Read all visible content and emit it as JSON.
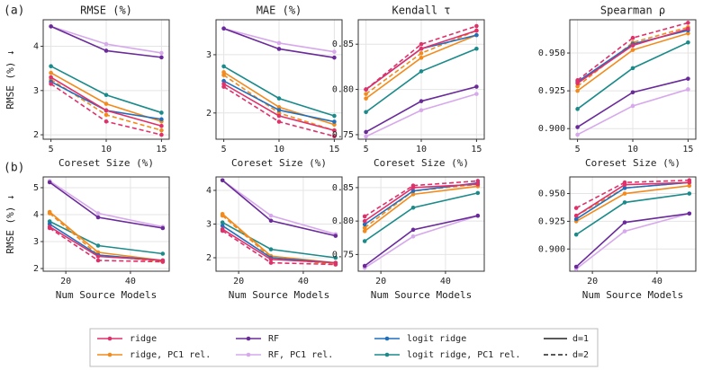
{
  "legend": {
    "entries": [
      {
        "name": "ridge",
        "color": "#e0306a"
      },
      {
        "name": "ridge, PC1 rel.",
        "color": "#f28a1c"
      },
      {
        "name": "RF",
        "color": "#6a2a9a"
      },
      {
        "name": "RF, PC1 rel.",
        "color": "#d7a8ec"
      },
      {
        "name": "logit ridge",
        "color": "#1f6fbf"
      },
      {
        "name": "logit ridge, PC1 rel.",
        "color": "#1a8a8a"
      }
    ],
    "styles": [
      {
        "label": "d=1",
        "dash": false
      },
      {
        "label": "d=2",
        "dash": true
      }
    ]
  },
  "chart_data": [
    {
      "type": "line",
      "panel_label": "(a)",
      "title": "RMSE (%)",
      "xlabel": "Coreset Size (%)",
      "ylabel": "RMSE (%) ↓",
      "x": [
        5,
        10,
        15
      ],
      "xlim": [
        4.3,
        15.7
      ],
      "xticks": [
        5,
        10,
        15
      ],
      "ylim": [
        1.9,
        4.6
      ],
      "yticks": [
        2,
        3,
        4
      ],
      "grid": true,
      "series": [
        {
          "name": "RF, PC1 rel.",
          "color": "#d7a8ec",
          "dash": false,
          "values": [
            4.45,
            4.05,
            3.85
          ]
        },
        {
          "name": "RF",
          "color": "#6a2a9a",
          "dash": false,
          "values": [
            4.45,
            3.9,
            3.75
          ]
        },
        {
          "name": "logit ridge, PC1 rel.",
          "color": "#1a8a8a",
          "dash": false,
          "values": [
            3.55,
            2.9,
            2.5
          ]
        },
        {
          "name": "ridge, PC1 rel.",
          "color": "#f28a1c",
          "dash": false,
          "values": [
            3.4,
            2.7,
            2.3
          ]
        },
        {
          "name": "ridge, PC1 rel.",
          "color": "#f28a1c",
          "dash": true,
          "values": [
            3.25,
            2.45,
            2.1
          ]
        },
        {
          "name": "logit ridge",
          "color": "#1f6fbf",
          "dash": false,
          "values": [
            3.2,
            2.55,
            2.35
          ]
        },
        {
          "name": "ridge",
          "color": "#e0306a",
          "dash": false,
          "values": [
            3.3,
            2.55,
            2.2
          ]
        },
        {
          "name": "ridge",
          "color": "#e0306a",
          "dash": true,
          "values": [
            3.15,
            2.3,
            2.0
          ]
        }
      ]
    },
    {
      "type": "line",
      "title": "MAE (%)",
      "xlabel": "Coreset Size (%)",
      "x": [
        5,
        10,
        15
      ],
      "xlim": [
        4.3,
        15.7
      ],
      "xticks": [
        5,
        10,
        15
      ],
      "ylim": [
        1.55,
        3.6
      ],
      "yticks": [
        2,
        3
      ],
      "grid": true,
      "series": [
        {
          "name": "RF, PC1 rel.",
          "color": "#d7a8ec",
          "dash": false,
          "values": [
            3.45,
            3.2,
            3.05
          ]
        },
        {
          "name": "RF",
          "color": "#6a2a9a",
          "dash": false,
          "values": [
            3.45,
            3.1,
            2.95
          ]
        },
        {
          "name": "logit ridge, PC1 rel.",
          "color": "#1a8a8a",
          "dash": false,
          "values": [
            2.8,
            2.25,
            1.95
          ]
        },
        {
          "name": "ridge, PC1 rel.",
          "color": "#f28a1c",
          "dash": false,
          "values": [
            2.7,
            2.1,
            1.8
          ]
        },
        {
          "name": "ridge, PC1 rel.",
          "color": "#f28a1c",
          "dash": true,
          "values": [
            2.65,
            2.0,
            1.7
          ]
        },
        {
          "name": "logit ridge",
          "color": "#1f6fbf",
          "dash": false,
          "values": [
            2.55,
            2.05,
            1.85
          ]
        },
        {
          "name": "ridge",
          "color": "#e0306a",
          "dash": false,
          "values": [
            2.5,
            1.95,
            1.7
          ]
        },
        {
          "name": "ridge",
          "color": "#e0306a",
          "dash": true,
          "values": [
            2.45,
            1.85,
            1.6
          ]
        }
      ]
    },
    {
      "type": "line",
      "title": "Kendall τ",
      "xlabel": "Coreset Size (%)",
      "x": [
        5,
        10,
        15
      ],
      "xlim": [
        4.3,
        15.7
      ],
      "xticks": [
        5,
        10,
        15
      ],
      "ylim": [
        0.745,
        0.877
      ],
      "yticks": [
        0.75,
        {
          "value": 0.8,
          "label": "0.80"
        },
        0.85
      ],
      "grid": true,
      "series": [
        {
          "name": "RF, PC1 rel.",
          "color": "#d7a8ec",
          "dash": false,
          "values": [
            0.748,
            0.777,
            0.795
          ]
        },
        {
          "name": "RF",
          "color": "#6a2a9a",
          "dash": false,
          "values": [
            0.753,
            0.787,
            0.803
          ]
        },
        {
          "name": "logit ridge, PC1 rel.",
          "color": "#1a8a8a",
          "dash": false,
          "values": [
            0.775,
            0.82,
            0.845
          ]
        },
        {
          "name": "ridge, PC1 rel.",
          "color": "#f28a1c",
          "dash": false,
          "values": [
            0.79,
            0.835,
            0.86
          ]
        },
        {
          "name": "ridge, PC1 rel.",
          "color": "#f28a1c",
          "dash": true,
          "values": [
            0.795,
            0.84,
            0.865
          ]
        },
        {
          "name": "logit ridge",
          "color": "#1f6fbf",
          "dash": false,
          "values": [
            0.8,
            0.845,
            0.86
          ]
        },
        {
          "name": "ridge",
          "color": "#e0306a",
          "dash": false,
          "values": [
            0.8,
            0.845,
            0.865
          ]
        },
        {
          "name": "ridge",
          "color": "#e0306a",
          "dash": true,
          "values": [
            0.8,
            0.85,
            0.87
          ]
        }
      ]
    },
    {
      "type": "line",
      "title": "Spearman ρ",
      "xlabel": "Coreset Size (%)",
      "x": [
        5,
        10,
        15
      ],
      "xlim": [
        4.3,
        15.7
      ],
      "xticks": [
        5,
        10,
        15
      ],
      "ylim": [
        0.893,
        0.972
      ],
      "yticks": [
        {
          "value": 0.9,
          "label": "0.900"
        },
        0.925,
        {
          "value": 0.95,
          "label": "0.950"
        }
      ],
      "grid": true,
      "series": [
        {
          "name": "RF, PC1 rel.",
          "color": "#d7a8ec",
          "dash": false,
          "values": [
            0.896,
            0.915,
            0.926
          ]
        },
        {
          "name": "RF",
          "color": "#6a2a9a",
          "dash": false,
          "values": [
            0.901,
            0.924,
            0.933
          ]
        },
        {
          "name": "logit ridge, PC1 rel.",
          "color": "#1a8a8a",
          "dash": false,
          "values": [
            0.913,
            0.94,
            0.957
          ]
        },
        {
          "name": "ridge, PC1 rel.",
          "color": "#f28a1c",
          "dash": false,
          "values": [
            0.925,
            0.952,
            0.963
          ]
        },
        {
          "name": "ridge, PC1 rel.",
          "color": "#f28a1c",
          "dash": true,
          "values": [
            0.928,
            0.957,
            0.967
          ]
        },
        {
          "name": "logit ridge",
          "color": "#1f6fbf",
          "dash": false,
          "values": [
            0.931,
            0.956,
            0.965
          ]
        },
        {
          "name": "ridge",
          "color": "#e0306a",
          "dash": false,
          "values": [
            0.93,
            0.955,
            0.966
          ]
        },
        {
          "name": "ridge",
          "color": "#e0306a",
          "dash": true,
          "values": [
            0.932,
            0.96,
            0.97
          ]
        }
      ]
    },
    {
      "type": "line",
      "panel_label": "(b)",
      "xlabel": "Num Source Models",
      "ylabel": "RMSE (%) ↓",
      "x": [
        15,
        30,
        50
      ],
      "xlim": [
        13,
        52
      ],
      "xticks": [
        20,
        40
      ],
      "ylim": [
        1.9,
        5.4
      ],
      "yticks": [
        2,
        3,
        4,
        5
      ],
      "grid": true,
      "series": [
        {
          "name": "RF, PC1 rel.",
          "color": "#d7a8ec",
          "dash": false,
          "values": [
            5.25,
            4.05,
            3.55
          ]
        },
        {
          "name": "RF",
          "color": "#6a2a9a",
          "dash": false,
          "values": [
            5.2,
            3.9,
            3.5
          ]
        },
        {
          "name": "logit ridge, PC1 rel.",
          "color": "#1a8a8a",
          "dash": false,
          "values": [
            3.75,
            2.85,
            2.55
          ]
        },
        {
          "name": "ridge, PC1 rel.",
          "color": "#f28a1c",
          "dash": false,
          "values": [
            4.1,
            2.6,
            2.3
          ]
        },
        {
          "name": "ridge, PC1 rel.",
          "color": "#f28a1c",
          "dash": true,
          "values": [
            4.05,
            2.5,
            2.25
          ]
        },
        {
          "name": "logit ridge",
          "color": "#1f6fbf",
          "dash": false,
          "values": [
            3.65,
            2.5,
            2.3
          ]
        },
        {
          "name": "ridge",
          "color": "#e0306a",
          "dash": false,
          "values": [
            3.55,
            2.45,
            2.3
          ]
        },
        {
          "name": "ridge",
          "color": "#e0306a",
          "dash": true,
          "values": [
            3.5,
            2.3,
            2.25
          ]
        }
      ]
    },
    {
      "type": "line",
      "xlabel": "Num Source Models",
      "x": [
        15,
        30,
        50
      ],
      "xlim": [
        13,
        52
      ],
      "xticks": [
        20,
        40
      ],
      "ylim": [
        1.6,
        4.4
      ],
      "yticks": [
        2,
        3,
        4
      ],
      "grid": true,
      "series": [
        {
          "name": "RF, PC1 rel.",
          "color": "#d7a8ec",
          "dash": false,
          "values": [
            4.3,
            3.25,
            2.7
          ]
        },
        {
          "name": "RF",
          "color": "#6a2a9a",
          "dash": false,
          "values": [
            4.3,
            3.1,
            2.65
          ]
        },
        {
          "name": "logit ridge, PC1 rel.",
          "color": "#1a8a8a",
          "dash": false,
          "values": [
            3.05,
            2.25,
            2.0
          ]
        },
        {
          "name": "ridge, PC1 rel.",
          "color": "#f28a1c",
          "dash": false,
          "values": [
            3.3,
            2.05,
            1.85
          ]
        },
        {
          "name": "ridge, PC1 rel.",
          "color": "#f28a1c",
          "dash": true,
          "values": [
            3.25,
            2.0,
            1.8
          ]
        },
        {
          "name": "logit ridge",
          "color": "#1f6fbf",
          "dash": false,
          "values": [
            2.95,
            2.0,
            1.85
          ]
        },
        {
          "name": "ridge",
          "color": "#e0306a",
          "dash": false,
          "values": [
            2.85,
            1.95,
            1.85
          ]
        },
        {
          "name": "ridge",
          "color": "#e0306a",
          "dash": true,
          "values": [
            2.8,
            1.85,
            1.8
          ]
        }
      ]
    },
    {
      "type": "line",
      "xlabel": "Num Source Models",
      "x": [
        15,
        30,
        50
      ],
      "xlim": [
        13,
        52
      ],
      "xticks": [
        20,
        40
      ],
      "ylim": [
        0.725,
        0.866
      ],
      "yticks": [
        0.75,
        {
          "value": 0.8,
          "label": "0.80"
        },
        0.85
      ],
      "grid": true,
      "series": [
        {
          "name": "RF, PC1 rel.",
          "color": "#d7a8ec",
          "dash": false,
          "values": [
            0.73,
            0.777,
            0.808
          ]
        },
        {
          "name": "RF",
          "color": "#6a2a9a",
          "dash": false,
          "values": [
            0.733,
            0.787,
            0.808
          ]
        },
        {
          "name": "logit ridge, PC1 rel.",
          "color": "#1a8a8a",
          "dash": false,
          "values": [
            0.77,
            0.82,
            0.842
          ]
        },
        {
          "name": "ridge, PC1 rel.",
          "color": "#f28a1c",
          "dash": false,
          "values": [
            0.785,
            0.84,
            0.852
          ]
        },
        {
          "name": "ridge, PC1 rel.",
          "color": "#f28a1c",
          "dash": true,
          "values": [
            0.79,
            0.845,
            0.855
          ]
        },
        {
          "name": "logit ridge",
          "color": "#1f6fbf",
          "dash": false,
          "values": [
            0.795,
            0.845,
            0.857
          ]
        },
        {
          "name": "ridge",
          "color": "#e0306a",
          "dash": false,
          "values": [
            0.8,
            0.85,
            0.855
          ]
        },
        {
          "name": "ridge",
          "color": "#e0306a",
          "dash": true,
          "values": [
            0.807,
            0.853,
            0.86
          ]
        }
      ]
    },
    {
      "type": "line",
      "xlabel": "Num Source Models",
      "x": [
        15,
        30,
        50
      ],
      "xlim": [
        13,
        52
      ],
      "xticks": [
        20,
        40
      ],
      "ylim": [
        0.88,
        0.965
      ],
      "yticks": [
        {
          "value": 0.9,
          "label": "0.900"
        },
        0.925,
        {
          "value": 0.95,
          "label": "0.950"
        }
      ],
      "grid": true,
      "series": [
        {
          "name": "RF, PC1 rel.",
          "color": "#d7a8ec",
          "dash": false,
          "values": [
            0.882,
            0.916,
            0.932
          ]
        },
        {
          "name": "RF",
          "color": "#6a2a9a",
          "dash": false,
          "values": [
            0.884,
            0.924,
            0.932
          ]
        },
        {
          "name": "logit ridge, PC1 rel.",
          "color": "#1a8a8a",
          "dash": false,
          "values": [
            0.913,
            0.942,
            0.95
          ]
        },
        {
          "name": "ridge, PC1 rel.",
          "color": "#f28a1c",
          "dash": false,
          "values": [
            0.925,
            0.95,
            0.957
          ]
        },
        {
          "name": "ridge, PC1 rel.",
          "color": "#f28a1c",
          "dash": true,
          "values": [
            0.93,
            0.955,
            0.96
          ]
        },
        {
          "name": "logit ridge",
          "color": "#1f6fbf",
          "dash": false,
          "values": [
            0.927,
            0.955,
            0.96
          ]
        },
        {
          "name": "ridge",
          "color": "#e0306a",
          "dash": false,
          "values": [
            0.93,
            0.958,
            0.96
          ]
        },
        {
          "name": "ridge",
          "color": "#e0306a",
          "dash": true,
          "values": [
            0.937,
            0.96,
            0.962
          ]
        }
      ]
    }
  ]
}
